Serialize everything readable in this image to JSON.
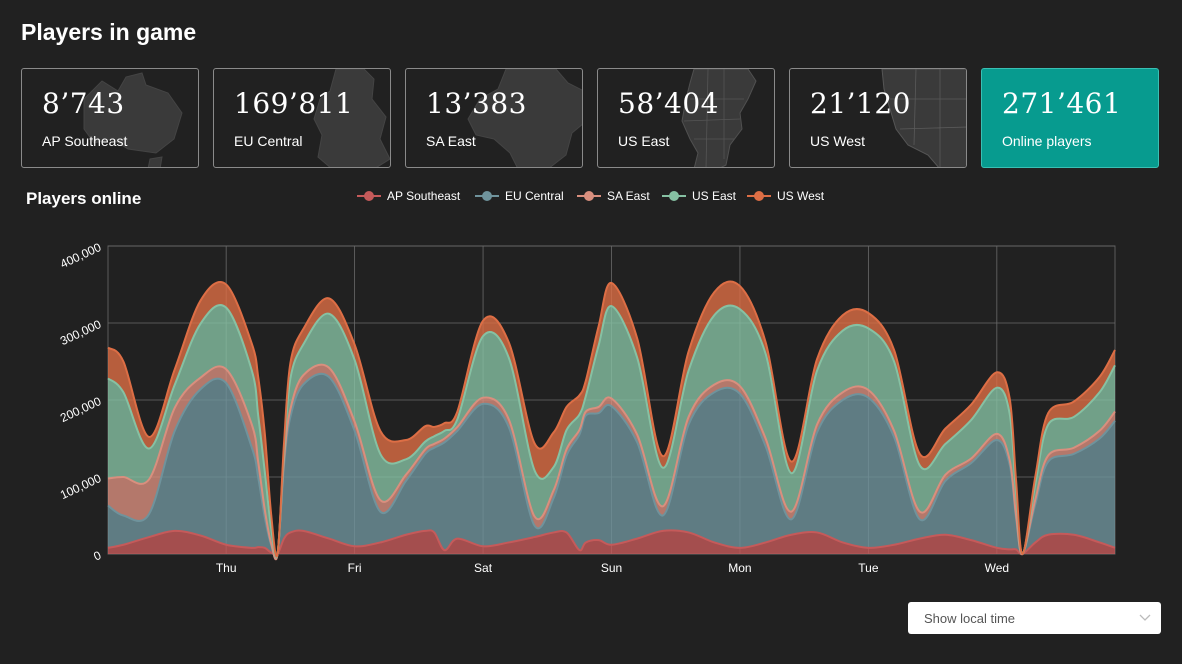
{
  "page": {
    "title": "Players in game",
    "chart_title": "Players online"
  },
  "cards": [
    {
      "value": "8’743",
      "label": "AP Southeast",
      "map_icon": "australia-map-icon"
    },
    {
      "value": "169’811",
      "label": "EU Central",
      "map_icon": "germany-map-icon"
    },
    {
      "value": "13’383",
      "label": "SA East",
      "map_icon": "brazil-map-icon"
    },
    {
      "value": "58’404",
      "label": "US East",
      "map_icon": "us-east-map-icon"
    },
    {
      "value": "21’120",
      "label": "US West",
      "map_icon": "us-west-map-icon"
    },
    {
      "value": "271’461",
      "label": "Online players"
    }
  ],
  "local_time": {
    "label": "Show local time",
    "icon": "chevron-down-icon"
  },
  "colors": {
    "background": "#212121",
    "accent": "#079b8f",
    "AP Southeast": "#c55a5a",
    "EU Central": "#6f939c",
    "SA East": "#d98f7e",
    "US East": "#86c1a3",
    "US West": "#dd6e45"
  },
  "chart_data": {
    "type": "area",
    "stacked": true,
    "title": "Players online",
    "xlabel": "",
    "ylabel": "",
    "ylim": [
      0,
      400000
    ],
    "y_ticks": [
      0,
      100000,
      200000,
      300000,
      400000
    ],
    "y_tick_labels": [
      "0",
      "100,000",
      "200,000",
      "300,000",
      "400,000"
    ],
    "x_range": [
      -0.92,
      6.92
    ],
    "x_ticks": [
      0,
      1,
      2,
      3,
      4,
      5,
      6
    ],
    "x_tick_labels": [
      "Thu",
      "Fri",
      "Sat",
      "Sun",
      "Mon",
      "Tue",
      "Wed"
    ],
    "grid": true,
    "legend_position": "top",
    "x": [
      -0.92,
      -0.8,
      -0.6,
      -0.4,
      -0.2,
      0,
      0.2,
      0.25,
      0.3,
      0.35,
      0.4,
      0.45,
      0.5,
      0.6,
      0.8,
      1,
      1.2,
      1.4,
      1.55,
      1.62,
      1.7,
      1.8,
      2,
      2.2,
      2.4,
      2.55,
      2.65,
      2.75,
      2.8,
      2.9,
      3,
      3.2,
      3.4,
      3.6,
      3.8,
      4,
      4.2,
      4.4,
      4.6,
      4.8,
      5,
      5.2,
      5.4,
      5.6,
      5.8,
      6,
      6.1,
      6.15,
      6.2,
      6.3,
      6.4,
      6.6,
      6.8,
      6.92
    ],
    "series": [
      {
        "name": "AP Southeast",
        "values": [
          8000,
          12000,
          22000,
          30000,
          24000,
          12000,
          8000,
          9000,
          8000,
          2000,
          0,
          20000,
          28000,
          30000,
          20000,
          10000,
          15000,
          25000,
          30000,
          28000,
          5000,
          20000,
          10000,
          15000,
          22000,
          28000,
          28000,
          5000,
          15000,
          18000,
          12000,
          20000,
          30000,
          28000,
          15000,
          8000,
          15000,
          25000,
          28000,
          15000,
          8000,
          12000,
          20000,
          25000,
          18000,
          8000,
          6000,
          6000,
          0,
          15000,
          25000,
          25000,
          15000,
          8000
        ]
      },
      {
        "name": "EU Central",
        "values": [
          55000,
          38000,
          30000,
          130000,
          190000,
          210000,
          130000,
          90000,
          40000,
          10000,
          0,
          95000,
          150000,
          190000,
          210000,
          150000,
          40000,
          70000,
          100000,
          110000,
          140000,
          140000,
          185000,
          150000,
          15000,
          45000,
          100000,
          150000,
          165000,
          165000,
          180000,
          125000,
          20000,
          140000,
          195000,
          200000,
          125000,
          20000,
          130000,
          185000,
          195000,
          140000,
          25000,
          70000,
          100000,
          140000,
          110000,
          40000,
          0,
          50000,
          95000,
          105000,
          135000,
          165000
        ]
      },
      {
        "name": "SA East",
        "values": [
          35000,
          50000,
          45000,
          30000,
          15000,
          18000,
          30000,
          20000,
          10000,
          2000,
          0,
          8000,
          10000,
          12000,
          12000,
          12000,
          15000,
          8000,
          6000,
          5000,
          5000,
          5000,
          8000,
          10000,
          12000,
          10000,
          8000,
          6000,
          5000,
          8000,
          10000,
          10000,
          12000,
          10000,
          10000,
          10000,
          10000,
          10000,
          10000,
          10000,
          10000,
          8000,
          10000,
          8000,
          6000,
          8000,
          6000,
          4000,
          0,
          6000,
          8000,
          8000,
          10000,
          12000
        ]
      },
      {
        "name": "US East",
        "values": [
          130000,
          110000,
          40000,
          30000,
          70000,
          80000,
          70000,
          60000,
          50000,
          20000,
          0,
          10000,
          40000,
          40000,
          70000,
          80000,
          60000,
          20000,
          10000,
          10000,
          10000,
          10000,
          80000,
          80000,
          60000,
          30000,
          25000,
          20000,
          20000,
          80000,
          120000,
          100000,
          50000,
          60000,
          90000,
          100000,
          110000,
          50000,
          70000,
          80000,
          80000,
          90000,
          60000,
          40000,
          50000,
          60000,
          60000,
          30000,
          0,
          20000,
          40000,
          40000,
          50000,
          60000
        ]
      },
      {
        "name": "US West",
        "values": [
          40000,
          40000,
          15000,
          20000,
          30000,
          30000,
          35000,
          50000,
          50000,
          18000,
          0,
          10000,
          20000,
          20000,
          20000,
          20000,
          30000,
          25000,
          20000,
          12000,
          10000,
          10000,
          20000,
          20000,
          35000,
          45000,
          30000,
          25000,
          20000,
          25000,
          30000,
          25000,
          15000,
          25000,
          30000,
          30000,
          15000,
          15000,
          15000,
          20000,
          20000,
          15000,
          15000,
          20000,
          20000,
          20000,
          20000,
          15000,
          0,
          10000,
          15000,
          20000,
          20000,
          20000
        ]
      }
    ]
  }
}
